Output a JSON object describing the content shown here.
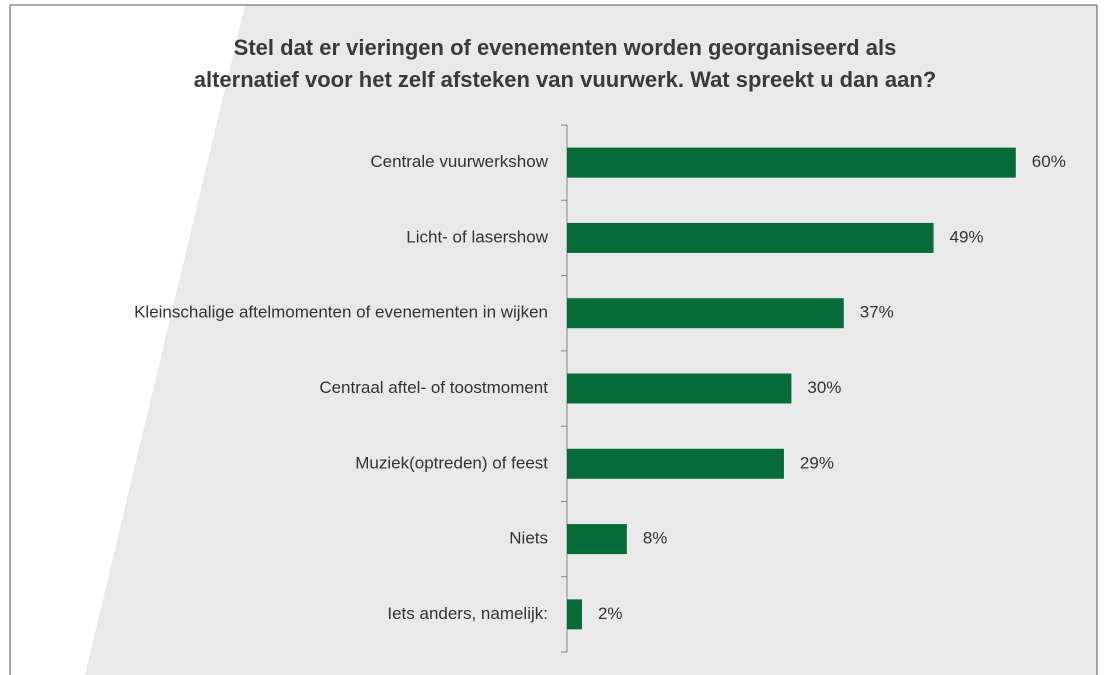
{
  "chart_data": {
    "type": "bar",
    "orientation": "horizontal",
    "title": "Stel dat er vieringen of evenementen worden georganiseerd als\nalternatief voor het zelf afsteken van vuurwerk. Wat spreekt u dan aan?",
    "categories": [
      "Centrale vuurwerkshow",
      "Licht- of lasershow",
      "Kleinschalige aftelmomenten of evenementen in wijken",
      "Centraal aftel- of toostmoment",
      "Muziek(optreden) of feest",
      "Niets",
      "Iets anders, namelijk:"
    ],
    "values": [
      60,
      49,
      37,
      30,
      29,
      8,
      2
    ],
    "value_labels": [
      "60%",
      "49%",
      "37%",
      "30%",
      "29%",
      "8%",
      "2%"
    ],
    "color": "#056b38"
  }
}
